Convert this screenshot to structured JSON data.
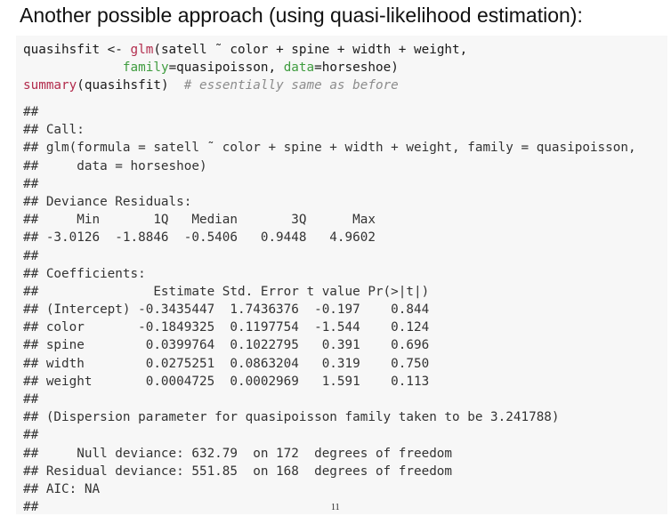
{
  "title": "Another possible approach (using quasi-likelihood estimation):",
  "code": [
    [
      {
        "text": "quasihsfit <- ",
        "color": "#1a1a1a"
      },
      {
        "text": "glm",
        "color": "#b22b4c"
      },
      {
        "text": "(satell ˜ color + spine + width + weight,",
        "color": "#1a1a1a"
      }
    ],
    [
      {
        "text": "             ",
        "color": "#1a1a1a"
      },
      {
        "text": "family",
        "color": "#3f9c3f"
      },
      {
        "text": "=quasipoisson, ",
        "color": "#1a1a1a"
      },
      {
        "text": "data",
        "color": "#3f9c3f"
      },
      {
        "text": "=horseshoe)",
        "color": "#1a1a1a"
      }
    ],
    [
      {
        "text": "summary",
        "color": "#b22b4c"
      },
      {
        "text": "(quasihsfit)  ",
        "color": "#1a1a1a"
      },
      {
        "text": "# essentially same as before",
        "color": "#8c8c8c",
        "italic": true
      }
    ]
  ],
  "output": [
    "##",
    "## Call:",
    "## glm(formula = satell ˜ color + spine + width + weight, family = quasipoisson,",
    "##     data = horseshoe)",
    "##",
    "## Deviance Residuals:",
    "##     Min       1Q   Median       3Q      Max",
    "## -3.0126  -1.8846  -0.5406   0.9448   4.9602",
    "##",
    "## Coefficients:",
    "##               Estimate Std. Error t value Pr(>|t|)",
    "## (Intercept) -0.3435447  1.7436376  -0.197    0.844",
    "## color       -0.1849325  0.1197754  -1.544    0.124",
    "## spine        0.0399764  0.1022795   0.391    0.696",
    "## width        0.0275251  0.0863204   0.319    0.750",
    "## weight       0.0004725  0.0002969   1.591    0.113",
    "##",
    "## (Dispersion parameter for quasipoisson family taken to be 3.241788)",
    "##",
    "##     Null deviance: 632.79  on 172  degrees of freedom",
    "## Residual deviance: 551.85  on 168  degrees of freedom",
    "## AIC: NA",
    "##"
  ],
  "page_number": "11"
}
